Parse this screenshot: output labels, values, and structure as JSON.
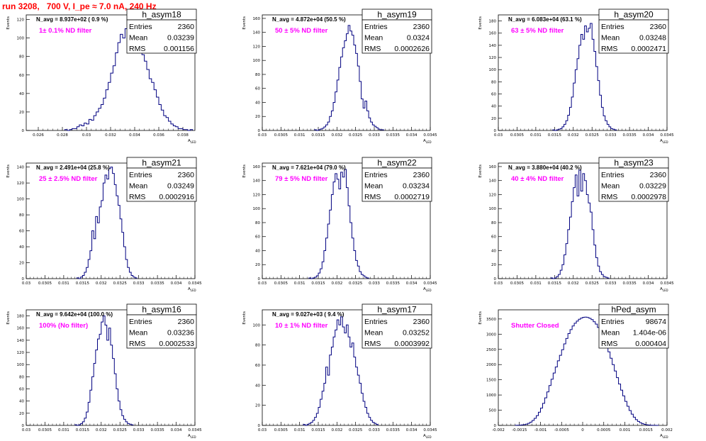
{
  "page": {
    "title": "run 3208,   700 V, I_pe ≈ 7.0 nA, 240 Hz"
  },
  "style": {
    "title_color": "#ff0000",
    "histogram_color": "#000080",
    "annotation_color": "#ff00ff",
    "frame_color": "#000000"
  },
  "chart_data": [
    {
      "type": "histogram",
      "name": "h_asym18",
      "stats": {
        "entries_label": "Entries",
        "entries": "2360",
        "mean_label": "Mean",
        "mean": "0.03239",
        "rms_label": "RMS",
        "rms": "0.001156"
      },
      "annotation": "N_avg = 8.937e+02 ( 0.9 %)",
      "filter": "1± 0.1% ND filter",
      "ylabel": "Events",
      "xlabel": "A_LED",
      "xlim": [
        0.025,
        0.039
      ],
      "ylim": [
        0,
        125
      ],
      "xticks": [
        0.026,
        0.028,
        0.03,
        0.032,
        0.034,
        0.036,
        0.038
      ],
      "xticklabels": [
        "0.026",
        "0.028",
        "0.03",
        "0.032",
        "0.034",
        "0.036",
        "0.038"
      ],
      "yticks": [
        0,
        20,
        40,
        60,
        80,
        100,
        120
      ],
      "bin_start": 0.0282,
      "bin_width": 0.0002,
      "counts": [
        1,
        0,
        1,
        2,
        2,
        4,
        6,
        5,
        8,
        7,
        12,
        11,
        16,
        20,
        24,
        28,
        35,
        44,
        52,
        62,
        70,
        84,
        95,
        104,
        100,
        110,
        117,
        98,
        108,
        100,
        92,
        96,
        82,
        75,
        66,
        56,
        52,
        44,
        36,
        28,
        22,
        16,
        14,
        10,
        7,
        5,
        4,
        2,
        2,
        1,
        1,
        0,
        1
      ]
    },
    {
      "type": "histogram",
      "name": "h_asym19",
      "stats": {
        "entries_label": "Entries",
        "entries": "2360",
        "mean_label": "Mean",
        "mean": "0.0324",
        "rms_label": "RMS",
        "rms": "0.0002626"
      },
      "annotation": "N_avg = 4.872e+04 (50.5 %)",
      "filter": "50 ± 5% ND filter",
      "ylabel": "Events",
      "xlabel": "A_LED",
      "xlim": [
        0.03,
        0.0345
      ],
      "ylim": [
        0,
        165
      ],
      "xticks": [
        0.03,
        0.0305,
        0.031,
        0.0315,
        0.032,
        0.0325,
        0.033,
        0.0335,
        0.034,
        0.0345
      ],
      "xticklabels": [
        "0.03",
        "0.0305",
        "0.031",
        "0.0315",
        "0.032",
        "0.0325",
        "0.033",
        "0.0335",
        "0.034",
        "0.0345"
      ],
      "yticks": [
        0,
        20,
        40,
        60,
        80,
        100,
        120,
        140,
        160
      ],
      "bin_start": 0.0314,
      "bin_width": 5e-05,
      "counts": [
        1,
        0,
        1,
        2,
        3,
        5,
        8,
        12,
        20,
        28,
        40,
        55,
        72,
        90,
        105,
        118,
        128,
        138,
        150,
        142,
        136,
        122,
        110,
        92,
        70,
        45,
        32,
        42,
        28,
        18,
        12,
        8,
        6,
        4,
        2,
        1,
        1
      ]
    },
    {
      "type": "histogram",
      "name": "h_asym20",
      "stats": {
        "entries_label": "Entries",
        "entries": "2360",
        "mean_label": "Mean",
        "mean": "0.03248",
        "rms_label": "RMS",
        "rms": "0.0002471"
      },
      "annotation": "N_avg = 6.083e+04 (63.1 %)",
      "filter": "63 ± 5% ND filter",
      "ylabel": "Events",
      "xlabel": "A_LED",
      "xlim": [
        0.03,
        0.0345
      ],
      "ylim": [
        0,
        190
      ],
      "xticks": [
        0.03,
        0.0305,
        0.031,
        0.0315,
        0.032,
        0.0325,
        0.033,
        0.0335,
        0.034,
        0.0345
      ],
      "xticklabels": [
        "0.03",
        "0.0305",
        "0.031",
        "0.0315",
        "0.032",
        "0.0325",
        "0.033",
        "0.0335",
        "0.034",
        "0.0345"
      ],
      "yticks": [
        0,
        20,
        40,
        60,
        80,
        100,
        120,
        140,
        160,
        180
      ],
      "bin_start": 0.03145,
      "bin_width": 5e-05,
      "counts": [
        1,
        0,
        1,
        2,
        3,
        6,
        10,
        16,
        25,
        38,
        55,
        78,
        100,
        118,
        140,
        158,
        150,
        172,
        162,
        168,
        176,
        150,
        130,
        105,
        82,
        58,
        38,
        24,
        16,
        10,
        6,
        3,
        2,
        1
      ]
    },
    {
      "type": "histogram",
      "name": "h_asym21",
      "stats": {
        "entries_label": "Entries",
        "entries": "2360",
        "mean_label": "Mean",
        "mean": "0.03249",
        "rms_label": "RMS",
        "rms": "0.0002916"
      },
      "annotation": "N_avg = 2.491e+04 (25.8 %)",
      "filter": "25 ± 2.5% ND filter",
      "ylabel": "Events",
      "xlabel": "A_LED",
      "xlim": [
        0.03,
        0.0345
      ],
      "ylim": [
        0,
        145
      ],
      "xticks": [
        0.03,
        0.0305,
        0.031,
        0.0315,
        0.032,
        0.0325,
        0.033,
        0.0335,
        0.034,
        0.0345
      ],
      "xticklabels": [
        "0.03",
        "0.0305",
        "0.031",
        "0.0315",
        "0.032",
        "0.0325",
        "0.033",
        "0.0335",
        "0.034",
        "0.0345"
      ],
      "yticks": [
        0,
        20,
        40,
        60,
        80,
        100,
        120,
        140
      ],
      "bin_start": 0.03135,
      "bin_width": 5e-05,
      "counts": [
        1,
        0,
        2,
        4,
        8,
        14,
        24,
        35,
        60,
        50,
        78,
        70,
        90,
        98,
        120,
        130,
        125,
        138,
        140,
        132,
        118,
        104,
        92,
        75,
        58,
        40,
        24,
        14,
        8,
        4,
        2,
        1
      ]
    },
    {
      "type": "histogram",
      "name": "h_asym22",
      "stats": {
        "entries_label": "Entries",
        "entries": "2360",
        "mean_label": "Mean",
        "mean": "0.03234",
        "rms_label": "RMS",
        "rms": "0.0002719"
      },
      "annotation": "N_avg = 7.621e+04 (79.0 %)",
      "filter": "79 ± 5% ND filter",
      "ylabel": "Events",
      "xlabel": "A_LED",
      "xlim": [
        0.03,
        0.0345
      ],
      "ylim": [
        0,
        165
      ],
      "xticks": [
        0.03,
        0.0305,
        0.031,
        0.0315,
        0.032,
        0.0325,
        0.033,
        0.0335,
        0.034,
        0.0345
      ],
      "xticklabels": [
        "0.03",
        "0.0305",
        "0.031",
        "0.0315",
        "0.032",
        "0.0325",
        "0.033",
        "0.0335",
        "0.034",
        "0.0345"
      ],
      "yticks": [
        0,
        20,
        40,
        60,
        80,
        100,
        120,
        140,
        160
      ],
      "bin_start": 0.03125,
      "bin_width": 5e-05,
      "counts": [
        1,
        0,
        1,
        2,
        4,
        8,
        14,
        24,
        40,
        58,
        78,
        98,
        120,
        138,
        150,
        142,
        128,
        152,
        145,
        156,
        130,
        104,
        80,
        58,
        40,
        26,
        18,
        10,
        6,
        4,
        2,
        1
      ]
    },
    {
      "type": "histogram",
      "name": "h_asym23",
      "stats": {
        "entries_label": "Entries",
        "entries": "2360",
        "mean_label": "Mean",
        "mean": "0.03229",
        "rms_label": "RMS",
        "rms": "0.0002978"
      },
      "annotation": "N_avg = 3.880e+04 (40.2 %)",
      "filter": "40 ± 4% ND filter",
      "ylabel": "Events",
      "xlabel": "A_LED",
      "xlim": [
        0.03,
        0.0345
      ],
      "ylim": [
        0,
        165
      ],
      "xticks": [
        0.03,
        0.0305,
        0.031,
        0.0315,
        0.032,
        0.0325,
        0.033,
        0.0335,
        0.034,
        0.0345
      ],
      "xticklabels": [
        "0.03",
        "0.0305",
        "0.031",
        "0.0315",
        "0.032",
        "0.0325",
        "0.033",
        "0.0335",
        "0.034",
        "0.0345"
      ],
      "yticks": [
        0,
        20,
        40,
        60,
        80,
        100,
        120,
        140,
        160
      ],
      "bin_start": 0.0314,
      "bin_width": 5e-05,
      "counts": [
        1,
        0,
        1,
        3,
        6,
        12,
        20,
        34,
        50,
        70,
        88,
        110,
        130,
        148,
        118,
        155,
        125,
        150,
        140,
        120,
        108,
        95,
        70,
        48,
        30,
        18,
        10,
        6,
        3,
        2,
        1
      ]
    },
    {
      "type": "histogram",
      "name": "h_asym16",
      "stats": {
        "entries_label": "Entries",
        "entries": "2360",
        "mean_label": "Mean",
        "mean": "0.03236",
        "rms_label": "RMS",
        "rms": "0.0002533"
      },
      "annotation": "N_avg = 9.642e+04 (100.0 %)",
      "filter": "100% (No filter)",
      "ylabel": "Events",
      "xlabel": "A_LED",
      "xlim": [
        0.03,
        0.0345
      ],
      "ylim": [
        0,
        190
      ],
      "xticks": [
        0.03,
        0.0305,
        0.031,
        0.0315,
        0.032,
        0.0325,
        0.033,
        0.0335,
        0.034,
        0.0345
      ],
      "xticklabels": [
        "0.03",
        "0.0305",
        "0.031",
        "0.0315",
        "0.032",
        "0.0325",
        "0.033",
        "0.0335",
        "0.034",
        "0.0345"
      ],
      "yticks": [
        0,
        20,
        40,
        60,
        80,
        100,
        120,
        140,
        160,
        180
      ],
      "bin_start": 0.0313,
      "bin_width": 5e-05,
      "counts": [
        1,
        0,
        1,
        3,
        6,
        12,
        22,
        38,
        58,
        80,
        102,
        124,
        142,
        150,
        170,
        180,
        165,
        140,
        160,
        132,
        110,
        85,
        60,
        40,
        26,
        16,
        10,
        6,
        3,
        2,
        1
      ]
    },
    {
      "type": "histogram",
      "name": "h_asym17",
      "stats": {
        "entries_label": "Entries",
        "entries": "2360",
        "mean_label": "Mean",
        "mean": "0.03252",
        "rms_label": "RMS",
        "rms": "0.0003992"
      },
      "annotation": "N_avg = 9.027e+03 ( 9.4 %)",
      "filter": "10 ± 1% ND filter",
      "ylabel": "Events",
      "xlabel": "A_LED",
      "xlim": [
        0.03,
        0.0345
      ],
      "ylim": [
        0,
        115
      ],
      "xticks": [
        0.03,
        0.0305,
        0.031,
        0.0315,
        0.032,
        0.0325,
        0.033,
        0.0335,
        0.034,
        0.0345
      ],
      "xticklabels": [
        "0.03",
        "0.0305",
        "0.031",
        "0.0315",
        "0.032",
        "0.0325",
        "0.033",
        "0.0335",
        "0.034",
        "0.0345"
      ],
      "yticks": [
        0,
        20,
        40,
        60,
        80,
        100
      ],
      "bin_start": 0.0311,
      "bin_width": 5e-05,
      "counts": [
        1,
        0,
        1,
        2,
        3,
        5,
        8,
        12,
        18,
        26,
        34,
        42,
        58,
        50,
        70,
        78,
        88,
        95,
        105,
        100,
        108,
        98,
        92,
        100,
        88,
        78,
        82,
        68,
        58,
        50,
        42,
        32,
        24,
        18,
        12,
        8,
        5,
        3,
        2,
        1
      ]
    },
    {
      "type": "histogram",
      "name": "hPed_asym",
      "stats": {
        "entries_label": "Entries",
        "entries": "98674",
        "mean_label": "Mean",
        "mean": "1.404e-06",
        "rms_label": "RMS",
        "rms": "0.000404"
      },
      "annotation": "",
      "filter": "Shutter Closed",
      "ylabel": "Events",
      "xlabel": "A_LED",
      "xlim": [
        -0.002,
        0.002
      ],
      "ylim": [
        0,
        3800
      ],
      "xticks": [
        -0.002,
        -0.0015,
        -0.001,
        -0.0005,
        0,
        0.0005,
        0.001,
        0.0015,
        0.002
      ],
      "xticklabels": [
        "-0.002",
        "-0.0015",
        "-0.001",
        "-0.0005",
        "0",
        "0.0005",
        "0.001",
        "0.0015",
        "0.002"
      ],
      "yticks": [
        0,
        500,
        1000,
        1500,
        2000,
        2500,
        3000,
        3500
      ],
      "bin_start": -0.0016,
      "bin_width": 5e-05,
      "counts": [
        2,
        5,
        9,
        16,
        27,
        45,
        71,
        109,
        162,
        232,
        322,
        434,
        569,
        727,
        906,
        1103,
        1310,
        1519,
        1722,
        1919,
        2123,
        2305,
        2490,
        2680,
        2860,
        3020,
        3150,
        3270,
        3360,
        3430,
        3490,
        3530,
        3555,
        3560,
        3550,
        3520,
        3480,
        3410,
        3330,
        3220,
        3100,
        2960,
        2800,
        2620,
        2420,
        2210,
        2000,
        1790,
        1570,
        1360,
        1160,
        970,
        790,
        630,
        490,
        370,
        270,
        190,
        130,
        86,
        55,
        34,
        20,
        11,
        6,
        3,
        2,
        1
      ]
    }
  ]
}
